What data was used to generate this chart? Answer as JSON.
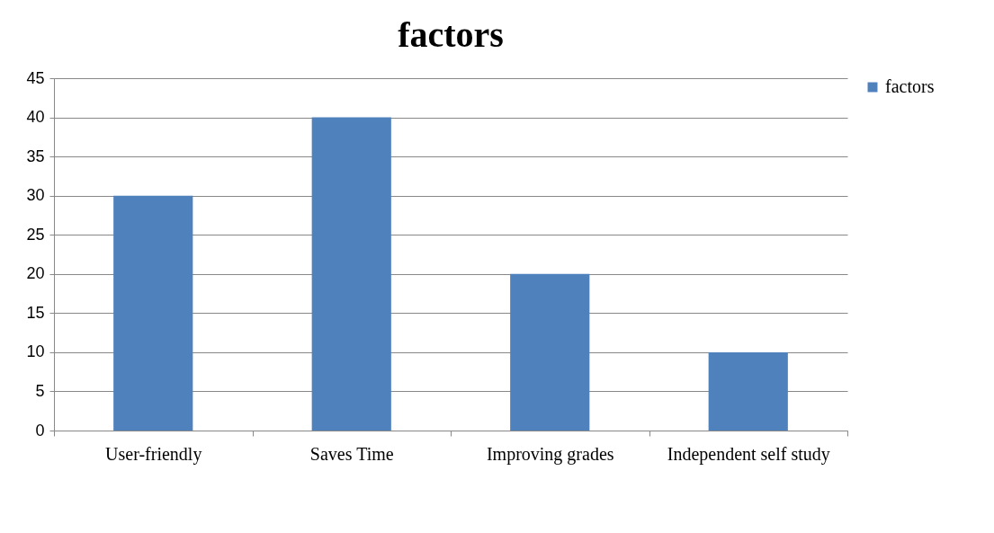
{
  "chart_data": {
    "type": "bar",
    "title": "factors",
    "categories": [
      "User-friendly",
      "Saves Time",
      "Improving grades",
      "Independent self study"
    ],
    "series": [
      {
        "name": "factors",
        "color": "#4f81bd",
        "values": [
          30,
          40,
          20,
          10
        ]
      }
    ],
    "ylim": [
      0,
      45
    ],
    "yticks": [
      0,
      5,
      10,
      15,
      20,
      25,
      30,
      35,
      40,
      45
    ],
    "grid": "y",
    "legend": "right"
  }
}
